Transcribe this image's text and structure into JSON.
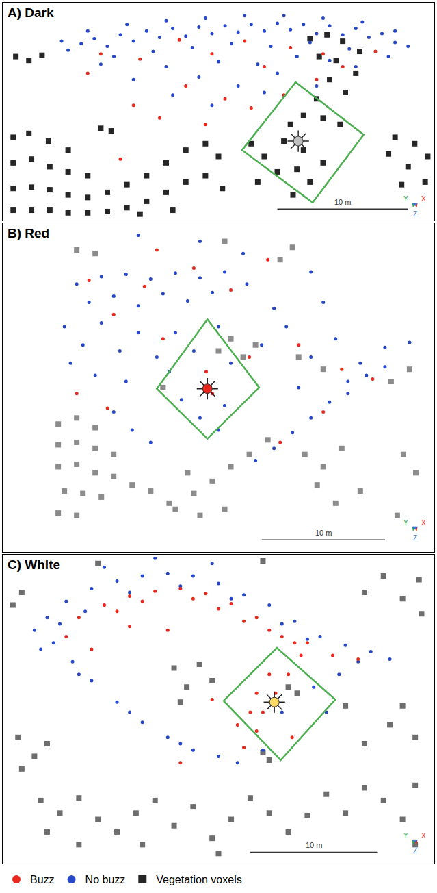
{
  "chart_data": [
    {
      "type": "scatter",
      "title": "A) Dark",
      "xlim": [
        0,
        33
      ],
      "ylim": [
        0,
        17
      ],
      "tick_labels": false,
      "grid": false,
      "legend": "bottom left",
      "series": [
        {
          "name": "Buzz",
          "color": "#e8281e",
          "marker": "circle",
          "x": [
            7.5,
            10.5,
            13.5,
            16.0,
            18.5,
            20.0,
            22.0,
            24.5,
            26.0,
            14.0,
            17.0,
            19.0,
            12.0,
            21.5,
            10.0,
            9.0,
            24.0,
            28.5,
            6.5,
            15.5
          ],
          "y": [
            13.0,
            12.6,
            14.1,
            13.0,
            14.0,
            12.0,
            13.5,
            13.0,
            12.0,
            10.5,
            9.5,
            8.8,
            8.0,
            9.8,
            9.0,
            4.8,
            11.0,
            13.2,
            11.5,
            7.5
          ]
        },
        {
          "name": "No buzz",
          "color": "#2747c9",
          "marker": "circle",
          "x": [
            5.0,
            6.0,
            7.0,
            8.0,
            9.0,
            10.0,
            11.0,
            12.0,
            13.0,
            14.0,
            15.0,
            16.0,
            17.0,
            18.0,
            19.0,
            20.0,
            21.0,
            22.0,
            23.0,
            24.0,
            25.0,
            26.0,
            27.0,
            28.0,
            29.0,
            30.0,
            31.0,
            8.5,
            11.5,
            14.5,
            17.5,
            20.5,
            23.5,
            26.5,
            12.5,
            16.5,
            19.5,
            22.5,
            10.0,
            15.0,
            18.0,
            13.0,
            21.0,
            25.0,
            6.5,
            9.5,
            12.5,
            15.5,
            18.5,
            21.5,
            24.5,
            27.5,
            30.0,
            4.5,
            7.5,
            27.0,
            29.5,
            20.0,
            16.0,
            24.0
          ],
          "y": [
            13.3,
            13.8,
            14.2,
            13.6,
            14.5,
            14.0,
            14.8,
            14.3,
            15.0,
            14.4,
            15.1,
            14.6,
            15.2,
            14.7,
            15.3,
            14.8,
            15.4,
            14.9,
            15.3,
            14.6,
            15.2,
            14.5,
            15.0,
            14.3,
            14.6,
            13.9,
            13.6,
            12.8,
            13.2,
            13.5,
            13.8,
            13.6,
            13.9,
            13.4,
            12.0,
            12.4,
            12.2,
            12.8,
            11.0,
            11.2,
            10.5,
            9.8,
            11.5,
            12.5,
            14.8,
            15.3,
            15.6,
            15.8,
            16.0,
            16.0,
            15.8,
            15.5,
            14.8,
            14.0,
            12.2,
            12.0,
            12.8,
            10.0,
            9.0,
            10.5
          ]
        },
        {
          "name": "Vegetation voxels",
          "color": "#262626",
          "marker": "square",
          "x": [
            0.8,
            2.0,
            3.5,
            5.0,
            0.8,
            2.2,
            3.6,
            5.0,
            6.5,
            0.8,
            2.2,
            3.6,
            5.0,
            6.5,
            8.0,
            9.5,
            11.0,
            12.5,
            14.0,
            15.5,
            16.5,
            0.8,
            2.2,
            3.6,
            5.0,
            6.5,
            8.0,
            9.5,
            11.0,
            12.5,
            14.0,
            15.5,
            16.8,
            10.5,
            13.0,
            23.5,
            24.8,
            26.0,
            27.3,
            24.2,
            25.5,
            27.0,
            25.0,
            26.2,
            24.0,
            23.0,
            22.0,
            24.5,
            25.8,
            21.5,
            23.0,
            24.5,
            23.5,
            22.2,
            19.0,
            20.0,
            21.0,
            19.5,
            22.5,
            30.0,
            31.5,
            32.5,
            31.0,
            30.5,
            32.3,
            29.5,
            1.0,
            2.0,
            3.0,
            7.5,
            8.3
          ],
          "y": [
            6.5,
            6.8,
            6.2,
            5.5,
            4.5,
            4.8,
            4.2,
            3.8,
            3.5,
            2.5,
            2.6,
            2.4,
            2.0,
            1.8,
            2.2,
            2.8,
            3.5,
            4.5,
            5.5,
            6.0,
            5.0,
            0.8,
            0.8,
            0.8,
            0.6,
            0.6,
            0.7,
            1.0,
            1.5,
            2.2,
            3.0,
            3.5,
            2.5,
            0.5,
            0.8,
            14.2,
            14.5,
            14.0,
            13.2,
            12.8,
            12.5,
            11.5,
            11.0,
            10.0,
            9.5,
            8.2,
            7.5,
            8.0,
            7.5,
            6.2,
            5.5,
            4.5,
            3.0,
            2.0,
            6.0,
            5.0,
            3.8,
            3.0,
            4.0,
            6.5,
            6.0,
            5.0,
            4.2,
            2.8,
            3.0,
            5.2,
            12.8,
            12.5,
            12.9,
            7.2,
            7.0
          ]
        }
      ],
      "zone": {
        "color": "#4caf50",
        "x": [
          22.4,
          27.6,
          23.7,
          18.3
        ],
        "y": [
          10.8,
          6.7,
          1.4,
          5.5
        ]
      },
      "lamp": {
        "color": "#bfbfbf",
        "x": [
          22.6
        ],
        "y": [
          6.2
        ]
      },
      "scale_bar": {
        "x": [
          21,
          31
        ],
        "y": 0.9,
        "label": "10 m"
      },
      "triad": [
        {
          "label": "Y",
          "color": "#22b14c"
        },
        {
          "label": "X",
          "color": "#e8281e"
        },
        {
          "label": "Z",
          "color": "#3a7bd5"
        }
      ]
    },
    {
      "type": "scatter",
      "title": "B) Red",
      "xlim": [
        0,
        35
      ],
      "ylim": [
        0,
        27
      ],
      "tick_labels": false,
      "grid": false,
      "series": [
        {
          "name": "Buzz",
          "color": "#e8281e",
          "marker": "circle",
          "x": [
            7.0,
            11.5,
            15.5,
            18.5,
            9.0,
            13.0,
            16.5,
            17.0,
            6.0,
            20.0,
            24.0,
            27.5,
            22.5,
            26.0,
            30.0,
            12.5,
            21.5,
            8.5
          ],
          "y": [
            22.3,
            21.8,
            23.3,
            21.5,
            19.5,
            17.5,
            14.8,
            13.0,
            13.0,
            16.0,
            17.0,
            15.0,
            9.0,
            11.5,
            14.2,
            24.8,
            24.0,
            11.8
          ]
        },
        {
          "name": "No buzz",
          "color": "#2747c9",
          "marker": "circle",
          "x": [
            6.0,
            8.0,
            10.0,
            12.0,
            14.0,
            16.0,
            18.0,
            19.5,
            19.8,
            7.0,
            9.0,
            11.0,
            13.0,
            15.0,
            17.0,
            5.0,
            6.5,
            8.0,
            9.5,
            11.0,
            5.5,
            7.5,
            10.0,
            12.5,
            14.0,
            15.5,
            17.5,
            18.5,
            14.5,
            16.0,
            18.0,
            17.5,
            13.5,
            21.0,
            23.0,
            25.0,
            27.0,
            29.0,
            31.0,
            33.0,
            24.0,
            28.0,
            22.0,
            26.0,
            20.5,
            22.0,
            23.5,
            25.0,
            26.5,
            28.0,
            29.5,
            31.0,
            9.0,
            10.5,
            12.0,
            11.0,
            16.0,
            25.0
          ],
          "y": [
            22.0,
            22.6,
            22.8,
            22.4,
            22.9,
            22.5,
            23.0,
            24.5,
            22.0,
            20.5,
            21.0,
            20.2,
            21.2,
            20.6,
            21.3,
            18.5,
            17.0,
            18.8,
            16.5,
            18.0,
            15.5,
            14.5,
            14.0,
            16.0,
            18.0,
            16.5,
            18.5,
            15.5,
            12.5,
            11.0,
            12.0,
            10.0,
            14.8,
            17.0,
            18.5,
            16.0,
            17.5,
            15.5,
            16.8,
            17.2,
            13.5,
            14.0,
            20.0,
            20.5,
            7.5,
            8.5,
            9.8,
            11.0,
            12.3,
            13.0,
            14.5,
            15.2,
            11.5,
            10.0,
            9.0,
            26.0,
            25.5,
            23.0
          ]
        },
        {
          "name": "Vegetation voxels",
          "color": "#8c8c8c",
          "marker": "square",
          "x": [
            4.5,
            6.0,
            7.5,
            4.5,
            6.0,
            7.5,
            9.0,
            4.5,
            6.0,
            7.5,
            9.0,
            10.5,
            5.0,
            6.5,
            8.0,
            4.5,
            6.0,
            12.0,
            13.5,
            14.0,
            15.5,
            17.0,
            18.5,
            20.0,
            21.5,
            16.0,
            18.0,
            15.0,
            24.5,
            26.0,
            27.5,
            25.5,
            27.0,
            32.5,
            33.5,
            31.5,
            33.0,
            24.0,
            26.0,
            32.0,
            29.0,
            17.5,
            18.5,
            19.5,
            20.5,
            13.0,
            6.0,
            7.5,
            18.0,
            22.5,
            23.5
          ],
          "y": [
            10.5,
            11.0,
            10.2,
            8.8,
            9.0,
            8.5,
            8.0,
            7.0,
            7.2,
            6.5,
            6.2,
            5.5,
            5.0,
            4.8,
            4.5,
            3.2,
            3.0,
            5.0,
            4.0,
            3.5,
            4.8,
            5.8,
            7.0,
            8.0,
            9.2,
            3.0,
            3.5,
            6.5,
            8.0,
            7.0,
            8.5,
            5.5,
            4.0,
            8.0,
            6.5,
            14.0,
            15.0,
            16.0,
            15.0,
            3.0,
            5.0,
            16.5,
            17.5,
            16.0,
            17.0,
            13.5,
            24.8,
            24.5,
            25.5,
            24.0,
            25.0
          ]
        }
      ],
      "zone": {
        "color": "#4caf50",
        "x": [
          16.6,
          20.8,
          16.6,
          12.5
        ],
        "y": [
          19.1,
          13.5,
          9.3,
          13.4
        ]
      },
      "lamp": {
        "color": "#e8281e",
        "x": [
          16.6
        ],
        "y": [
          13.4
        ]
      },
      "scale_bar": {
        "x": [
          21,
          31
        ],
        "y": 1.0,
        "label": "10 m"
      },
      "triad": [
        {
          "label": "Y",
          "color": "#22b14c"
        },
        {
          "label": "X",
          "color": "#e8281e"
        },
        {
          "label": "Z",
          "color": "#3a7bd5"
        }
      ]
    },
    {
      "type": "scatter",
      "title": "C) White",
      "xlim": [
        0,
        34
      ],
      "ylim": [
        0,
        24.5
      ],
      "tick_labels": false,
      "grid": false,
      "series": [
        {
          "name": "Buzz",
          "color": "#e8281e",
          "marker": "circle",
          "x": [
            6.0,
            8.0,
            10.0,
            12.0,
            14.0,
            16.0,
            18.0,
            20.0,
            22.0,
            23.5,
            22.5,
            21.5,
            20.5,
            20.0,
            19.0,
            24.0,
            26.0,
            28.0,
            18.5,
            16.5,
            13.0,
            10.0,
            7.0,
            5.0,
            14.0,
            22.8,
            9.0,
            11.0,
            15.0,
            17.0,
            19.0,
            21.0,
            23.0,
            21.0,
            20.0,
            19.5
          ],
          "y": [
            19.5,
            20.5,
            21.2,
            21.6,
            21.8,
            21.4,
            20.6,
            19.5,
            18.0,
            16.5,
            15.0,
            13.5,
            12.0,
            10.5,
            9.2,
            17.5,
            16.5,
            16.2,
            11.0,
            13.0,
            18.5,
            18.8,
            17.0,
            18.0,
            8.0,
            10.0,
            20.0,
            20.8,
            21.0,
            20.2,
            19.2,
            18.5,
            17.5,
            15.0,
            13.5,
            12.0
          ]
        },
        {
          "name": "No buzz",
          "color": "#2747c9",
          "marker": "circle",
          "x": [
            3.5,
            5.0,
            7.0,
            9.0,
            11.0,
            13.0,
            15.0,
            17.0,
            19.0,
            21.0,
            23.0,
            25.0,
            27.0,
            29.0,
            30.5,
            2.5,
            4.0,
            5.5,
            7.0,
            9.0,
            11.0,
            13.0,
            15.0,
            17.0,
            25.5,
            24.5,
            26.5,
            12.0,
            8.0,
            16.5,
            22.0,
            20.5,
            4.5,
            6.5,
            10.0,
            14.0,
            18.0,
            22.0,
            24.0,
            28.0,
            6.0,
            10.0,
            14.0,
            18.5,
            3.0
          ],
          "y": [
            19.5,
            20.8,
            21.8,
            22.4,
            22.8,
            23.0,
            22.8,
            22.2,
            21.3,
            20.5,
            19.2,
            18.0,
            17.3,
            16.8,
            16.2,
            18.5,
            17.5,
            16.0,
            14.5,
            12.8,
            11.2,
            10.0,
            9.0,
            8.5,
            12.0,
            14.0,
            15.0,
            24.2,
            23.5,
            23.8,
            12.0,
            9.0,
            19.0,
            20.0,
            21.5,
            22.0,
            21.0,
            19.0,
            17.8,
            16.0,
            15.0,
            12.0,
            9.5,
            8.0,
            17.0
          ]
        },
        {
          "name": "Vegetation voxels",
          "color": "#6e6e6e",
          "marker": "square",
          "x": [
            3.0,
            4.5,
            6.0,
            7.5,
            3.5,
            9.0,
            10.5,
            12.0,
            13.5,
            15.0,
            16.5,
            18.0,
            19.5,
            21.0,
            22.5,
            24.0,
            25.5,
            27.0,
            28.5,
            30.0,
            31.5,
            32.5,
            32.5,
            17.0,
            11.0,
            6.0,
            1.5,
            2.5,
            1.2,
            3.5,
            30.5,
            31.5,
            32.5,
            28.5,
            28.5,
            30.0,
            31.5,
            32.8,
            33.0,
            0.8,
            1.5,
            7.5,
            20.5,
            13.5,
            14.5,
            15.5,
            16.5,
            14.0,
            22.5,
            23.2,
            20.5,
            21.0,
            27.0
          ],
          "y": [
            5.0,
            4.0,
            5.2,
            3.5,
            2.5,
            2.5,
            4.0,
            5.0,
            3.0,
            4.5,
            2.0,
            3.5,
            5.2,
            4.0,
            2.5,
            3.8,
            5.5,
            4.0,
            6.0,
            5.0,
            3.5,
            6.2,
            1.5,
            0.8,
            1.5,
            1.5,
            7.5,
            8.5,
            10.0,
            9.5,
            11.0,
            12.5,
            10.0,
            9.5,
            21.5,
            22.8,
            21.0,
            22.5,
            19.8,
            20.5,
            21.5,
            23.8,
            24.0,
            15.5,
            14.0,
            15.8,
            14.5,
            12.8,
            14.0,
            13.5,
            8.8,
            8.2,
            12.5
          ]
        }
      ],
      "zone": {
        "color": "#4caf50",
        "x": [
          21.6,
          26.2,
          21.9,
          17.4
        ],
        "y": [
          17.1,
          13.0,
          8.2,
          12.9
        ]
      },
      "lamp": {
        "color": "#ffd966",
        "x": [
          21.4
        ],
        "y": [
          12.8
        ]
      },
      "scale_bar": {
        "x": [
          19.5,
          29.5
        ],
        "y": 0.9,
        "label": "10 m"
      },
      "triad": [
        {
          "label": "Y",
          "color": "#22b14c"
        },
        {
          "label": "X",
          "color": "#e8281e"
        },
        {
          "label": "Z",
          "color": "#3a7bd5"
        }
      ]
    }
  ]
}
